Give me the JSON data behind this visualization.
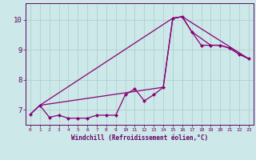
{
  "xlabel": "Windchill (Refroidissement éolien,°C)",
  "bg_color": "#cce8e8",
  "line_color": "#880077",
  "grid_color": "#aacccc",
  "axis_color": "#660066",
  "tick_color": "#660066",
  "xlim": [
    -0.5,
    23.5
  ],
  "ylim": [
    6.5,
    10.55
  ],
  "yticks": [
    7,
    8,
    9,
    10
  ],
  "xticks": [
    0,
    1,
    2,
    3,
    4,
    5,
    6,
    7,
    8,
    9,
    10,
    11,
    12,
    13,
    14,
    15,
    16,
    17,
    18,
    19,
    20,
    21,
    22,
    23
  ],
  "line1_x": [
    0,
    1,
    2,
    3,
    4,
    5,
    6,
    7,
    8,
    9,
    10,
    11,
    12,
    13,
    14,
    15,
    16,
    17,
    18,
    19,
    20,
    21,
    22,
    23
  ],
  "line1_y": [
    6.85,
    7.15,
    6.75,
    6.82,
    6.72,
    6.72,
    6.72,
    6.82,
    6.82,
    6.82,
    7.5,
    7.7,
    7.3,
    7.5,
    7.75,
    10.05,
    10.1,
    9.6,
    9.15,
    9.15,
    9.15,
    9.05,
    8.85,
    8.7
  ],
  "line2_x": [
    0,
    1,
    14,
    15,
    16,
    23
  ],
  "line2_y": [
    6.85,
    7.15,
    7.75,
    10.05,
    10.1,
    8.7
  ],
  "line3_x": [
    1,
    15,
    16,
    17,
    19,
    20,
    21,
    22,
    23
  ],
  "line3_y": [
    7.15,
    10.05,
    10.1,
    9.6,
    9.15,
    9.15,
    9.05,
    8.85,
    8.7
  ],
  "marker": "D",
  "markersize": 2.5,
  "linewidth": 0.9
}
